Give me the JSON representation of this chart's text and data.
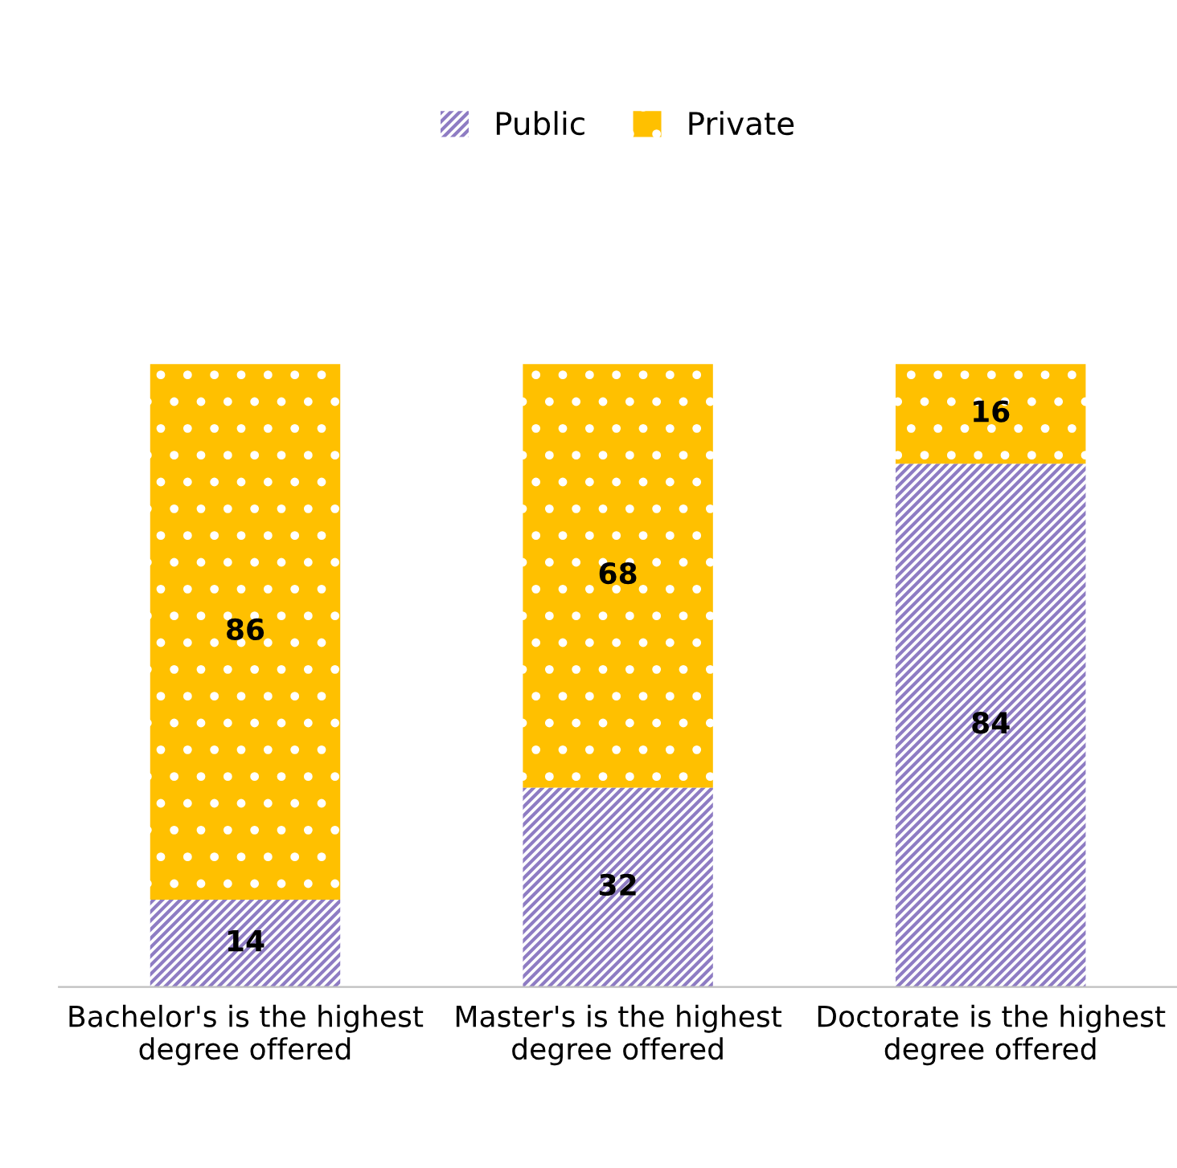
{
  "chart_data": {
    "type": "bar",
    "stacked": true,
    "data_labels": true,
    "legend": "top",
    "grid": false,
    "tick_labels": "x",
    "categories": [
      "Bachelor's is the highest\ndegree offered",
      "Master's is the highest\ndegree offered",
      "Doctorate is the highest\ndegree offered"
    ],
    "series": [
      {
        "name": "Public",
        "color": "#8e7cc3",
        "values": [
          14,
          32,
          84
        ]
      },
      {
        "name": "Private",
        "color": "#ffc000",
        "values": [
          86,
          68,
          16
        ]
      }
    ]
  }
}
